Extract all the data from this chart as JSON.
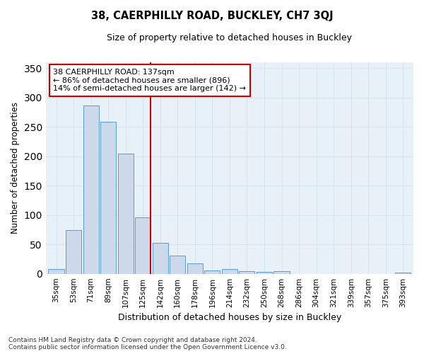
{
  "title": "38, CAERPHILLY ROAD, BUCKLEY, CH7 3QJ",
  "subtitle": "Size of property relative to detached houses in Buckley",
  "xlabel": "Distribution of detached houses by size in Buckley",
  "ylabel": "Number of detached properties",
  "bar_labels": [
    "35sqm",
    "53sqm",
    "71sqm",
    "89sqm",
    "107sqm",
    "125sqm",
    "142sqm",
    "160sqm",
    "178sqm",
    "196sqm",
    "214sqm",
    "232sqm",
    "250sqm",
    "268sqm",
    "286sqm",
    "304sqm",
    "321sqm",
    "339sqm",
    "357sqm",
    "375sqm",
    "393sqm"
  ],
  "bar_values": [
    8,
    74,
    287,
    259,
    204,
    96,
    53,
    31,
    18,
    6,
    8,
    5,
    3,
    4,
    0,
    0,
    0,
    0,
    0,
    0,
    2
  ],
  "bar_color": "#ccd9ea",
  "bar_edge_color": "#5b9bd5",
  "vline_color": "#cc0000",
  "annotation_text": "38 CAERPHILLY ROAD: 137sqm\n← 86% of detached houses are smaller (896)\n14% of semi-detached houses are larger (142) →",
  "annotation_box_color": "#ffffff",
  "annotation_box_edge": "#cc0000",
  "grid_color": "#d6e4f0",
  "background_color": "#e8f0f8",
  "ylim": [
    0,
    360
  ],
  "yticks": [
    0,
    50,
    100,
    150,
    200,
    250,
    300,
    350
  ],
  "footer": "Contains HM Land Registry data © Crown copyright and database right 2024.\nContains public sector information licensed under the Open Government Licence v3.0."
}
